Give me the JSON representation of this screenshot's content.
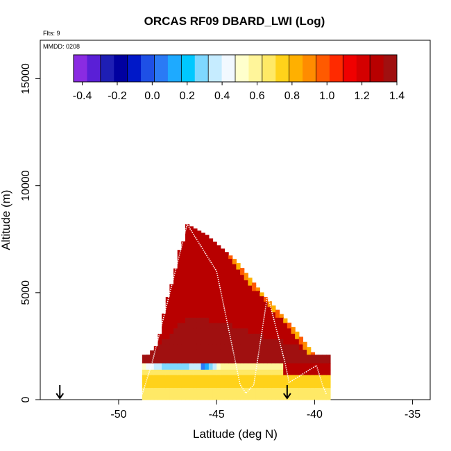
{
  "chart_data": {
    "type": "heatmap",
    "title": "ORCAS RF09 DBARD_LWI (Log)",
    "flights_label": "Flts: 9",
    "date_label": "MMDD: 0208",
    "xlabel": "Latitude (deg N)",
    "ylabel": "Altitude (m)",
    "xlim": [
      -54.0,
      -34.1
    ],
    "ylim": [
      0,
      16800
    ],
    "x_ticks": [
      -50,
      -45,
      -40,
      -35
    ],
    "y_ticks": [
      0,
      5000,
      10000,
      15000
    ],
    "grid": false,
    "colorbar": {
      "min": -0.45,
      "max": 1.4,
      "ticks": [
        -0.4,
        -0.2,
        0.0,
        0.2,
        0.4,
        0.6,
        0.8,
        1.0,
        1.2,
        1.4
      ],
      "tick_labels": [
        "-0.4",
        "-0.2",
        "0.0",
        "0.2",
        "0.4",
        "0.6",
        "0.8",
        "1.0",
        "1.2",
        "1.4"
      ],
      "colors": [
        "#8a2be2",
        "#5a1fd6",
        "#1e1eb4",
        "#0000a0",
        "#0018c8",
        "#1e50e6",
        "#2a7af5",
        "#1eaaff",
        "#00c8ff",
        "#7fd8ff",
        "#c6ecff",
        "#f2f9ff",
        "#ffffcc",
        "#fff59a",
        "#ffe966",
        "#ffd21a",
        "#ffb000",
        "#ff8c00",
        "#ff5a00",
        "#ff2a00",
        "#f00000",
        "#d40000",
        "#b80000",
        "#a01010"
      ]
    },
    "cross_section": {
      "upper_outline": [
        [
          -48.6,
          2000
        ],
        [
          -48.0,
          2600
        ],
        [
          -47.6,
          4500
        ],
        [
          -47.2,
          5700
        ],
        [
          -46.9,
          7000
        ],
        [
          -46.6,
          7600
        ],
        [
          -46.5,
          8200
        ],
        [
          -45.5,
          7700
        ],
        [
          -44.0,
          6500
        ],
        [
          -42.6,
          4900
        ],
        [
          -41.0,
          3300
        ],
        [
          -40.0,
          2100
        ],
        [
          -39.3,
          1500
        ]
      ],
      "lower_edge_x": [
        -48.8,
        -39.3
      ],
      "bands": [
        {
          "z0": 1700,
          "z1": 2100,
          "value": 1.35
        },
        {
          "z0": 1400,
          "z1": 1700,
          "value": 0.5
        },
        {
          "z0": 1150,
          "z1": 1400,
          "value": 0.7
        },
        {
          "z0": 850,
          "z1": 1150,
          "value": 0.75
        },
        {
          "z0": 550,
          "z1": 850,
          "value": 0.72
        },
        {
          "z0": 250,
          "z1": 550,
          "value": 0.7
        },
        {
          "z0": 0,
          "z1": 250,
          "value": 0.65
        }
      ],
      "interior_value_high": 1.25,
      "interior_value_low": 1.35,
      "edge_value": 0.95
    },
    "flight_track": [
      [
        -48.8,
        250
      ],
      [
        -48.3,
        1700
      ],
      [
        -46.5,
        8200
      ],
      [
        -45.0,
        6000
      ],
      [
        -43.8,
        700
      ],
      [
        -43.5,
        300
      ],
      [
        -43.1,
        700
      ],
      [
        -42.4,
        4900
      ],
      [
        -41.5,
        1700
      ],
      [
        -41.3,
        800
      ],
      [
        -39.9,
        1600
      ],
      [
        -39.6,
        700
      ],
      [
        -39.4,
        250
      ]
    ],
    "markers": [
      {
        "x": -53.0,
        "direction": "down"
      },
      {
        "x": -41.4,
        "direction": "down"
      }
    ]
  }
}
